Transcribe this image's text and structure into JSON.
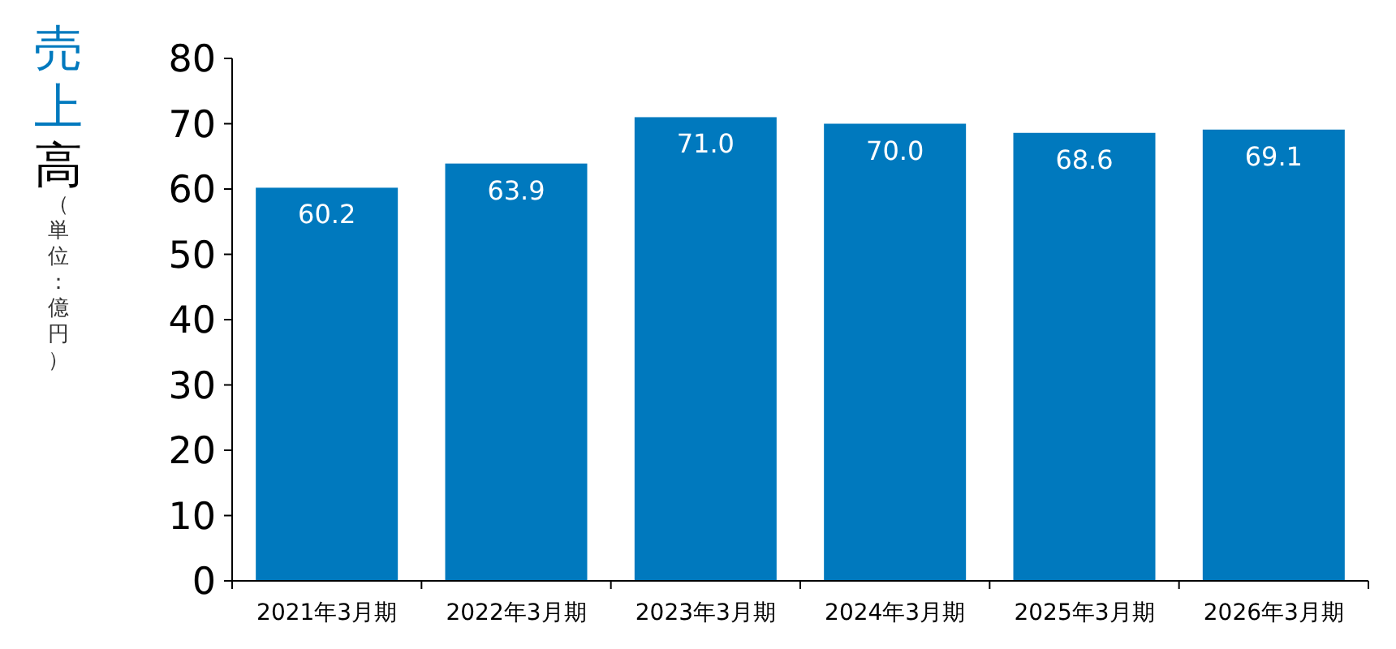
{
  "chart_data": {
    "type": "bar",
    "ylabel": "売上高",
    "annotations": [
      "（単位：億円）"
    ],
    "categories": [
      "2021年3月期",
      "2022年3月期",
      "2023年3月期",
      "2024年3月期",
      "2025年3月期",
      "2026年3月期"
    ],
    "values": [
      60.2,
      63.9,
      71.0,
      70.0,
      68.6,
      69.1
    ],
    "value_labels": [
      "60.2",
      "63.9",
      "71.0",
      "70.0",
      "68.6",
      "69.1"
    ],
    "color": "#0079be",
    "ylim": [
      0,
      80
    ],
    "yticks": [
      0,
      10,
      20,
      30,
      40,
      50,
      60,
      70,
      80
    ],
    "grid": false
  }
}
